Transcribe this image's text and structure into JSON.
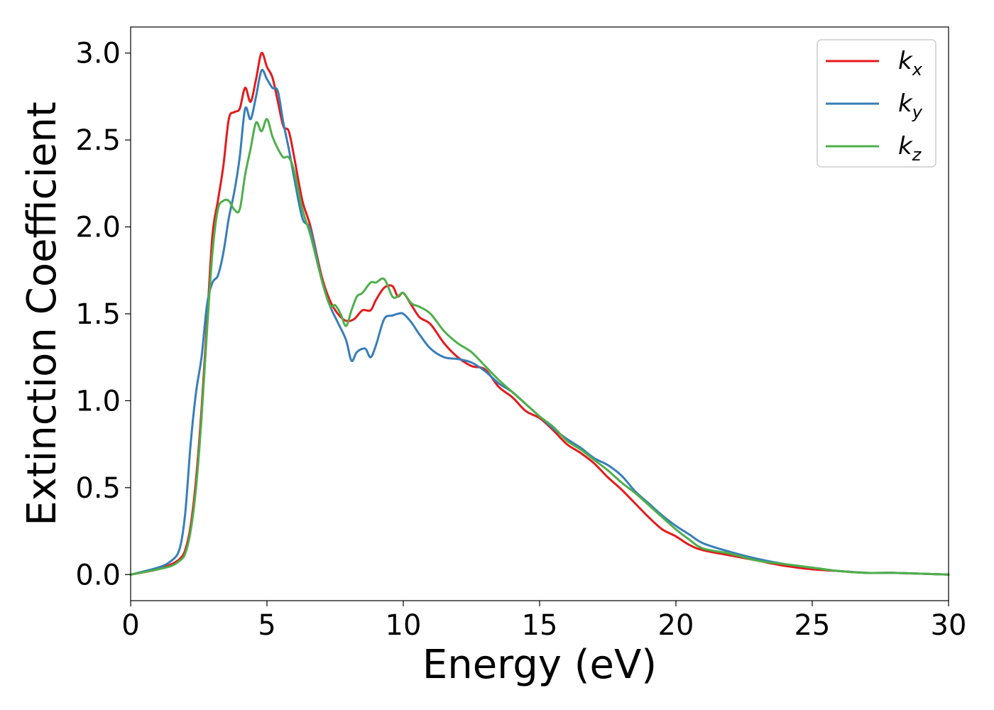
{
  "chart_data": {
    "type": "line",
    "title": "",
    "xlabel": "Energy (eV)",
    "ylabel": "Extinction Coefficient",
    "xlim": [
      0,
      30
    ],
    "ylim": [
      -0.15,
      3.15
    ],
    "xticks": [
      0,
      5,
      10,
      15,
      20,
      25,
      30
    ],
    "xtick_labels": [
      "0",
      "5",
      "10",
      "15",
      "20",
      "25",
      "30"
    ],
    "yticks": [
      0.0,
      0.5,
      1.0,
      1.5,
      2.0,
      2.5,
      3.0
    ],
    "ytick_labels": [
      "0.0",
      "0.5",
      "1.0",
      "1.5",
      "2.0",
      "2.5",
      "3.0"
    ],
    "grid": false,
    "legend_position": "top-right",
    "series": [
      {
        "name": "k_x",
        "label_main": "k",
        "label_sub": "x",
        "color": "#e41a1c",
        "x": [
          0,
          1,
          1.5,
          1.8,
          2,
          2.2,
          2.4,
          2.6,
          2.8,
          3.0,
          3.2,
          3.4,
          3.6,
          3.8,
          4.0,
          4.2,
          4.4,
          4.6,
          4.8,
          5.0,
          5.2,
          5.4,
          5.6,
          5.8,
          6.0,
          6.3,
          6.6,
          7.0,
          7.3,
          7.6,
          7.9,
          8.2,
          8.5,
          8.8,
          9.0,
          9.3,
          9.6,
          9.8,
          10.0,
          10.3,
          10.6,
          11.0,
          11.5,
          12.0,
          12.5,
          13.0,
          13.5,
          14.0,
          14.5,
          15.0,
          15.5,
          16.0,
          16.5,
          17.0,
          17.5,
          18.0,
          18.5,
          19.0,
          19.5,
          20.0,
          20.5,
          21.0,
          22.0,
          23.0,
          24.0,
          25.0,
          26.0,
          27.0,
          28.0,
          29.0,
          30.0
        ],
        "y": [
          0.0,
          0.03,
          0.06,
          0.09,
          0.14,
          0.28,
          0.55,
          0.95,
          1.45,
          1.95,
          2.15,
          2.35,
          2.62,
          2.66,
          2.68,
          2.8,
          2.72,
          2.85,
          3.0,
          2.92,
          2.86,
          2.72,
          2.58,
          2.55,
          2.4,
          2.15,
          2.0,
          1.72,
          1.58,
          1.5,
          1.46,
          1.47,
          1.52,
          1.52,
          1.58,
          1.65,
          1.66,
          1.6,
          1.62,
          1.55,
          1.48,
          1.44,
          1.33,
          1.25,
          1.2,
          1.18,
          1.08,
          1.02,
          0.94,
          0.9,
          0.83,
          0.75,
          0.7,
          0.64,
          0.56,
          0.49,
          0.41,
          0.33,
          0.26,
          0.22,
          0.17,
          0.14,
          0.11,
          0.08,
          0.05,
          0.03,
          0.02,
          0.01,
          0.01,
          0.005,
          0.0
        ]
      },
      {
        "name": "k_y",
        "label_main": "k",
        "label_sub": "y",
        "color": "#377eb8",
        "x": [
          0,
          1,
          1.5,
          1.8,
          2,
          2.2,
          2.4,
          2.6,
          2.8,
          3.0,
          3.2,
          3.4,
          3.6,
          3.8,
          4.0,
          4.2,
          4.4,
          4.6,
          4.8,
          5.0,
          5.2,
          5.4,
          5.6,
          5.8,
          6.0,
          6.3,
          6.6,
          7.0,
          7.3,
          7.6,
          7.9,
          8.1,
          8.3,
          8.6,
          8.8,
          9.0,
          9.3,
          9.6,
          9.8,
          10.0,
          10.3,
          10.6,
          11.0,
          11.5,
          12.0,
          12.5,
          13.0,
          13.5,
          14.0,
          14.5,
          15.0,
          15.5,
          16.0,
          16.5,
          17.0,
          17.5,
          18.0,
          18.5,
          19.0,
          19.5,
          20.0,
          20.5,
          21.0,
          22.0,
          23.0,
          24.0,
          25.0,
          26.0,
          27.0,
          28.0,
          29.0,
          30.0
        ],
        "y": [
          0.0,
          0.04,
          0.08,
          0.15,
          0.35,
          0.75,
          1.05,
          1.25,
          1.55,
          1.68,
          1.72,
          1.85,
          2.05,
          2.2,
          2.4,
          2.68,
          2.62,
          2.75,
          2.9,
          2.85,
          2.8,
          2.78,
          2.6,
          2.45,
          2.28,
          2.05,
          1.98,
          1.7,
          1.55,
          1.45,
          1.35,
          1.23,
          1.28,
          1.3,
          1.25,
          1.32,
          1.47,
          1.49,
          1.5,
          1.5,
          1.45,
          1.38,
          1.3,
          1.25,
          1.24,
          1.22,
          1.17,
          1.1,
          1.05,
          0.98,
          0.91,
          0.84,
          0.78,
          0.73,
          0.67,
          0.63,
          0.57,
          0.48,
          0.41,
          0.34,
          0.28,
          0.23,
          0.18,
          0.13,
          0.09,
          0.06,
          0.04,
          0.02,
          0.01,
          0.01,
          0.005,
          0.0
        ]
      },
      {
        "name": "k_z",
        "label_main": "k",
        "label_sub": "z",
        "color": "#4daf4a",
        "x": [
          0,
          1,
          1.5,
          1.8,
          2,
          2.2,
          2.4,
          2.6,
          2.8,
          3.0,
          3.2,
          3.4,
          3.6,
          3.8,
          4.0,
          4.2,
          4.4,
          4.6,
          4.8,
          5.0,
          5.2,
          5.4,
          5.6,
          5.8,
          6.0,
          6.3,
          6.6,
          7.0,
          7.3,
          7.5,
          7.7,
          7.9,
          8.1,
          8.3,
          8.5,
          8.8,
          9.0,
          9.3,
          9.6,
          9.8,
          10.0,
          10.3,
          10.6,
          11.0,
          11.5,
          12.0,
          12.5,
          13.0,
          13.5,
          14.0,
          14.5,
          15.0,
          15.5,
          16.0,
          16.5,
          17.0,
          17.5,
          18.0,
          18.5,
          19.0,
          19.5,
          20.0,
          20.5,
          21.0,
          22.0,
          23.0,
          24.0,
          25.0,
          26.0,
          27.0,
          28.0,
          29.0,
          30.0
        ],
        "y": [
          0.0,
          0.03,
          0.05,
          0.08,
          0.12,
          0.25,
          0.5,
          0.9,
          1.4,
          1.85,
          2.1,
          2.15,
          2.15,
          2.1,
          2.1,
          2.3,
          2.45,
          2.6,
          2.55,
          2.62,
          2.52,
          2.45,
          2.4,
          2.4,
          2.32,
          2.1,
          1.95,
          1.7,
          1.55,
          1.55,
          1.5,
          1.43,
          1.52,
          1.6,
          1.62,
          1.68,
          1.68,
          1.7,
          1.6,
          1.6,
          1.62,
          1.56,
          1.54,
          1.5,
          1.4,
          1.33,
          1.28,
          1.2,
          1.12,
          1.05,
          0.98,
          0.91,
          0.85,
          0.77,
          0.72,
          0.66,
          0.6,
          0.53,
          0.47,
          0.4,
          0.33,
          0.26,
          0.2,
          0.15,
          0.12,
          0.08,
          0.06,
          0.04,
          0.02,
          0.01,
          0.01,
          0.005,
          0.0
        ]
      }
    ]
  }
}
